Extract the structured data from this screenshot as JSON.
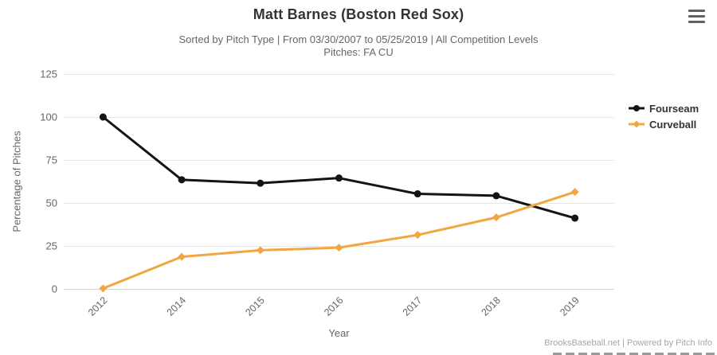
{
  "header": {
    "title": "Matt Barnes (Boston Red Sox)",
    "subtitle_line1": "Sorted by Pitch Type | From 03/30/2007 to 05/25/2019 | All Competition Levels",
    "subtitle_line2": "Pitches: FA CU"
  },
  "menu": {
    "icon": "hamburger-menu-icon"
  },
  "chart_data": {
    "type": "line",
    "title": "Matt Barnes (Boston Red Sox)",
    "categories": [
      "2012",
      "2014",
      "2015",
      "2016",
      "2017",
      "2018",
      "2019"
    ],
    "series": [
      {
        "name": "Fourseam",
        "color": "#141414",
        "marker": "circle",
        "values": [
          100,
          63.5,
          61.5,
          64.5,
          55.3,
          54.2,
          41.2
        ]
      },
      {
        "name": "Curveball",
        "color": "#F2A640",
        "marker": "diamond",
        "values": [
          0.3,
          18.7,
          22.5,
          24.0,
          31.4,
          41.6,
          56.4
        ]
      }
    ],
    "xlabel": "Year",
    "ylabel": "Percentage of Pitches",
    "ylim": [
      0,
      125
    ],
    "yticks": [
      0,
      25,
      50,
      75,
      100,
      125
    ],
    "x_label_rotation": -45,
    "grid": true,
    "legend_position": "right",
    "grid_color": "#e6e6e6",
    "axis_line_color": "#ccd6eb",
    "axis_text_color": "#666666"
  },
  "footer": {
    "credit": "BrooksBaseball.net | Powered by Pitch Info"
  }
}
